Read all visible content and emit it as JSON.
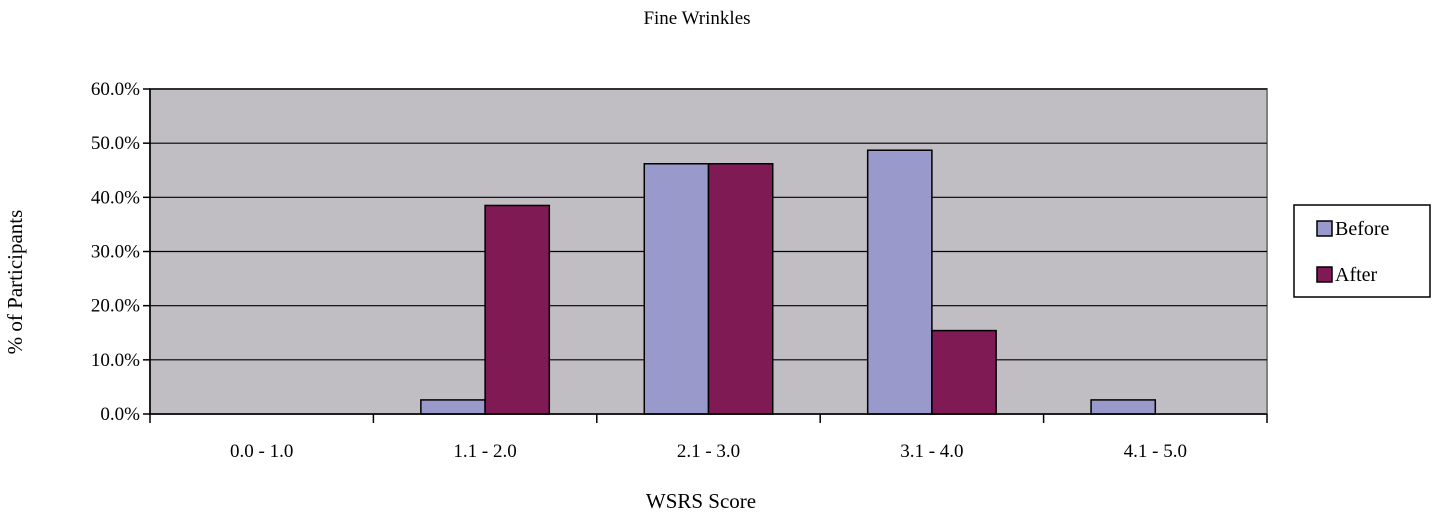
{
  "chart_data": {
    "type": "bar",
    "title": "Fine Wrinkles",
    "xlabel": "WSRS Score",
    "ylabel": "% of Participants",
    "categories": [
      "0.0 - 1.0",
      "1.1 - 2.0",
      "2.1 - 3.0",
      "3.1 - 4.0",
      "4.1 - 5.0"
    ],
    "series": [
      {
        "name": "Before",
        "values": [
          0.0,
          2.6,
          46.2,
          48.7,
          2.6
        ]
      },
      {
        "name": "After",
        "values": [
          0.0,
          38.5,
          46.2,
          15.4,
          0.0
        ]
      }
    ],
    "ylim": [
      0,
      60
    ],
    "yticks": [
      0,
      10,
      20,
      30,
      40,
      50,
      60
    ],
    "ytick_labels": [
      "0.0%",
      "10.0%",
      "20.0%",
      "30.0%",
      "40.0%",
      "50.0%",
      "60.0%"
    ],
    "grid": true,
    "legend_position": "right",
    "colors": {
      "plot_background": "#c0bec2",
      "before": "#9999cc",
      "after": "#7f1a54",
      "gridline": "#000000"
    }
  }
}
